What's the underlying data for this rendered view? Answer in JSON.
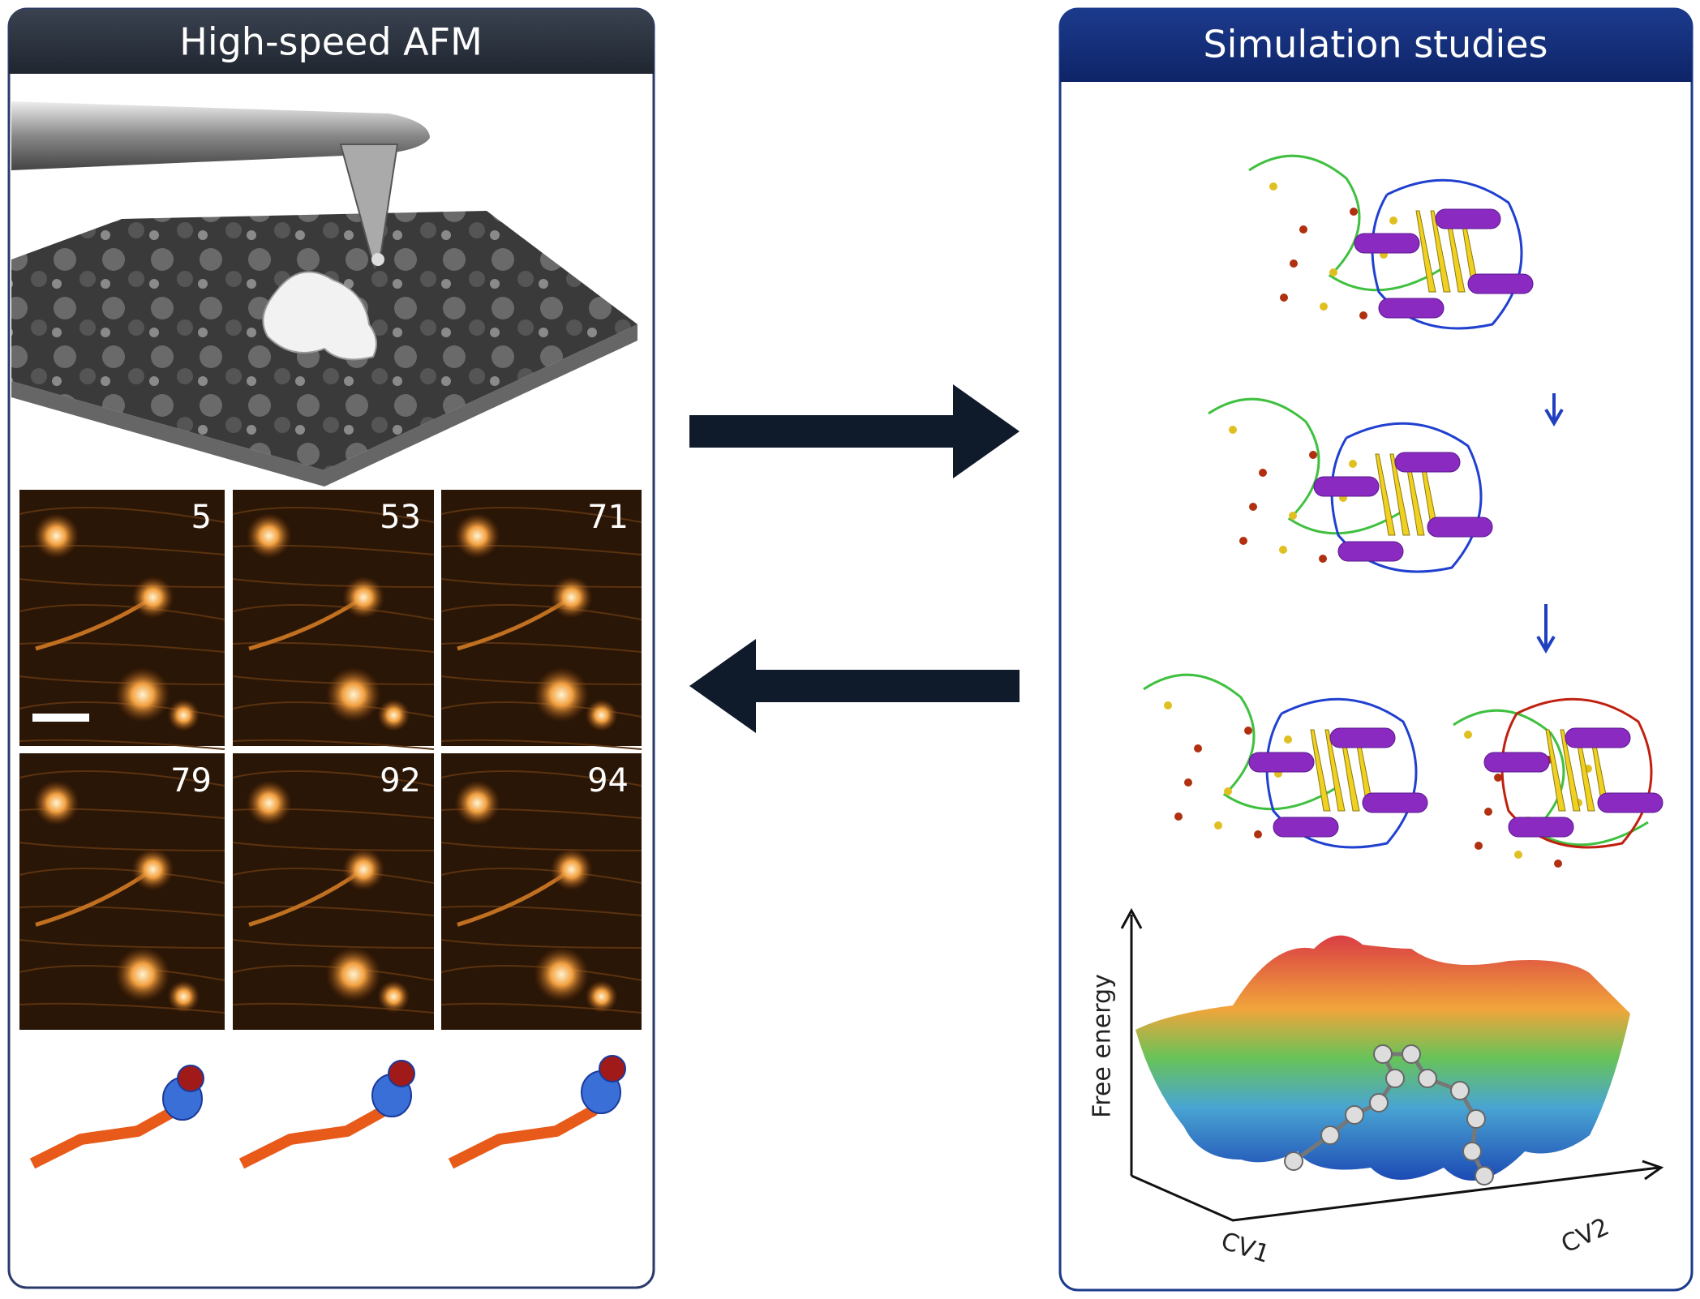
{
  "left_panel": {
    "title": "High-speed AFM",
    "frames": [
      "5",
      "53",
      "71",
      "79",
      "92",
      "94"
    ]
  },
  "right_panel": {
    "title": "Simulation studies",
    "plot": {
      "y_label": "Free energy",
      "x_label": "CV1",
      "z_label": "CV2"
    }
  }
}
